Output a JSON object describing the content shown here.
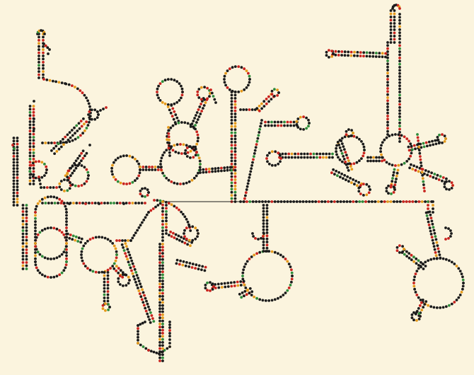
{
  "figure": {
    "background": "#fbf4de",
    "description": "",
    "nucleotide_colors": {
      "dominant": "#1a1a1a",
      "red": "#c8231e",
      "orange": "#e59a1c",
      "green": "#2e8b3a"
    },
    "color_mix": {
      "red": 0.16,
      "orange": 0.09,
      "green": 0.07
    }
  }
}
